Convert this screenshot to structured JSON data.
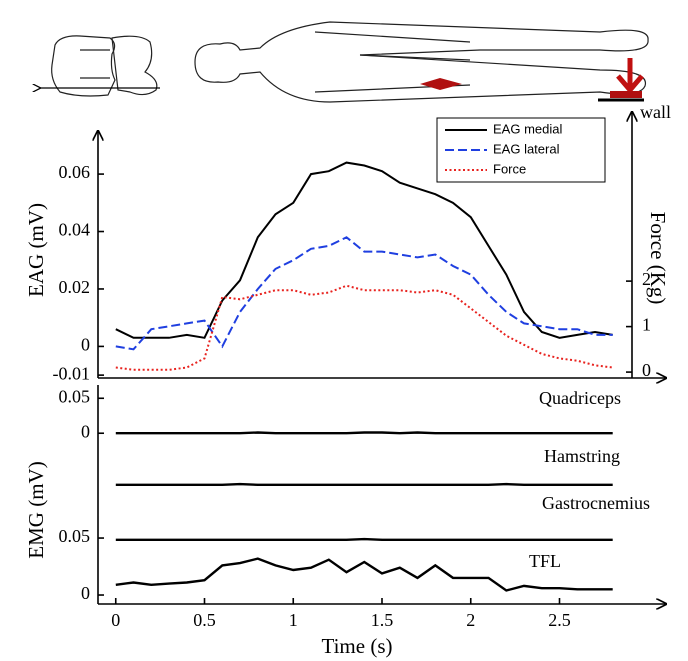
{
  "illustration": {
    "label": "wall"
  },
  "chart_data": [
    {
      "type": "line",
      "ylabel": "EAG (mV)",
      "y2label": "Force (Kg)",
      "x": [
        0,
        0.1,
        0.2,
        0.3,
        0.4,
        0.5,
        0.6,
        0.7,
        0.8,
        0.9,
        1,
        1.1,
        1.2,
        1.3,
        1.4,
        1.5,
        1.6,
        1.7,
        1.8,
        1.9,
        2,
        2.1,
        2.2,
        2.3,
        2.4,
        2.5,
        2.6,
        2.7,
        2.8
      ],
      "xlim": [
        -0.1,
        3.1
      ],
      "ylim": [
        -0.011,
        0.075
      ],
      "yticks": [
        {
          "value": -0.01,
          "label": "-0.01"
        },
        0,
        0.02,
        0.04,
        0.06
      ],
      "y2lim": [
        -0.13,
        5.3
      ],
      "y2ticks": [
        0,
        1,
        2
      ],
      "legend": "upper right",
      "series": [
        {
          "name": "EAG medial",
          "color": "#000000",
          "linestyle": "solid",
          "values": [
            0.006,
            0.003,
            0.003,
            0.003,
            0.004,
            0.003,
            0.016,
            0.023,
            0.038,
            0.046,
            0.05,
            0.06,
            0.061,
            0.064,
            0.063,
            0.061,
            0.057,
            0.055,
            0.053,
            0.05,
            0.045,
            0.035,
            0.025,
            0.012,
            0.005,
            0.003,
            0.004,
            0.005,
            0.004
          ]
        },
        {
          "name": "EAG lateral",
          "color": "#1f3fe0",
          "linestyle": "dashed",
          "values": [
            0,
            -0.001,
            0.006,
            0.007,
            0.008,
            0.009,
            0,
            0.012,
            0.02,
            0.027,
            0.03,
            0.034,
            0.035,
            0.038,
            0.033,
            0.033,
            0.032,
            0.031,
            0.032,
            0.028,
            0.025,
            0.018,
            0.012,
            0.008,
            0.007,
            0.006,
            0.006,
            0.004,
            0.004
          ]
        },
        {
          "name": "Force",
          "color": "#e8231f",
          "linestyle": "dotted",
          "axis": "y2",
          "values": [
            0.1,
            0.05,
            0.05,
            0.05,
            0.1,
            0.3,
            1.65,
            1.6,
            1.7,
            1.8,
            1.8,
            1.7,
            1.75,
            1.9,
            1.8,
            1.8,
            1.8,
            1.75,
            1.8,
            1.7,
            1.4,
            1.1,
            0.8,
            0.6,
            0.4,
            0.3,
            0.25,
            0.15,
            0.1
          ]
        }
      ]
    },
    {
      "type": "stacked-lines",
      "ylabel": "EMG (mV)",
      "xlabel": "Time (s)",
      "x": [
        0,
        0.1,
        0.2,
        0.3,
        0.4,
        0.5,
        0.6,
        0.7,
        0.8,
        0.9,
        1,
        1.1,
        1.2,
        1.3,
        1.4,
        1.5,
        1.6,
        1.7,
        1.8,
        1.9,
        2,
        2.1,
        2.2,
        2.3,
        2.4,
        2.5,
        2.6,
        2.7,
        2.8
      ],
      "xlim": [
        -0.1,
        3.1
      ],
      "xticks": [
        0,
        0.5,
        1,
        1.5,
        2,
        2.5
      ],
      "color": "#000000",
      "panels": [
        {
          "name": "Quadriceps",
          "ylim": [
            -0.024,
            0.069
          ],
          "yticks": [
            0,
            0.05
          ],
          "values": [
            0,
            0,
            0,
            0,
            0,
            0,
            0,
            0,
            0.001,
            0,
            0,
            0,
            0,
            0,
            0.001,
            0.001,
            0,
            0.001,
            0,
            0,
            0,
            0,
            0,
            0,
            0,
            0,
            0,
            0,
            0
          ]
        },
        {
          "name": "Hamstring",
          "ylim": [
            -0.029,
            0.05
          ],
          "values": [
            0,
            0,
            0,
            0,
            0,
            0,
            0,
            0.001,
            0,
            0,
            0,
            0,
            0,
            0,
            0,
            0,
            0,
            0,
            0,
            0,
            0,
            0,
            0.001,
            0,
            0,
            0,
            0,
            0,
            0
          ]
        },
        {
          "name": "Gastrocnemius",
          "ylim": [
            -0.029,
            0.05
          ],
          "values": [
            0,
            0,
            0,
            0,
            0,
            0,
            0,
            0,
            0,
            0,
            0,
            0,
            0,
            0,
            0.001,
            0,
            0,
            0,
            0,
            0,
            0,
            0,
            0,
            0,
            0,
            0,
            0,
            0,
            0
          ]
        },
        {
          "name": "TFL",
          "ylim": [
            -0.007,
            0.079
          ],
          "yticks": [
            0,
            0.05
          ],
          "values": [
            0.009,
            0.011,
            0.009,
            0.01,
            0.011,
            0.013,
            0.026,
            0.028,
            0.032,
            0.026,
            0.022,
            0.024,
            0.031,
            0.02,
            0.029,
            0.019,
            0.024,
            0.015,
            0.026,
            0.015,
            0.015,
            0.015,
            0.004,
            0.008,
            0.006,
            0.006,
            0.005,
            0.005,
            0.005
          ]
        }
      ]
    }
  ]
}
